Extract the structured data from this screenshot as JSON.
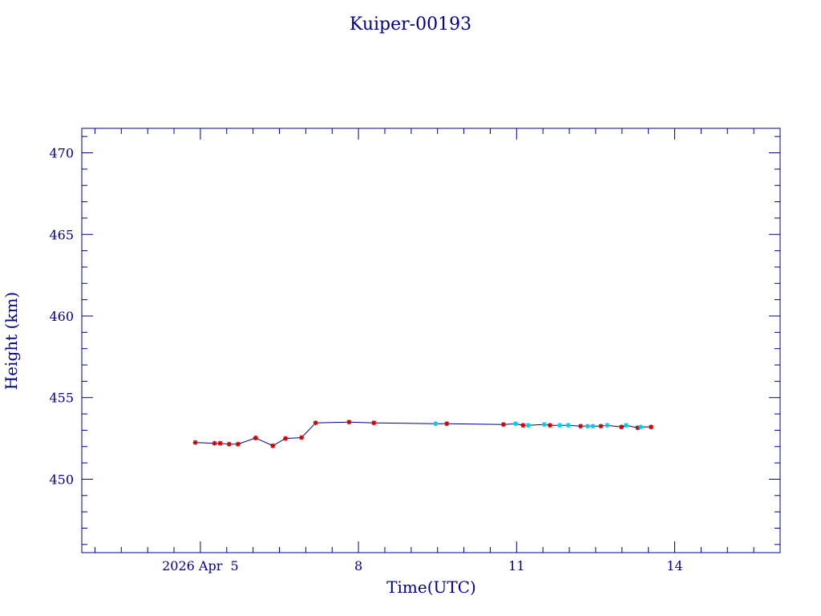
{
  "chart_data": {
    "type": "line",
    "title": "Kuiper-00193",
    "xlabel": "Time(UTC)",
    "ylabel": "Height (km)",
    "xlim": [
      "2026-04-02T18:00",
      "2026-04-16T00:00"
    ],
    "ylim": [
      445.5,
      471.5
    ],
    "grid": false,
    "x_ticks": [
      {
        "x": "2026-04-05T00:00",
        "label": "2026 Apr  5"
      },
      {
        "x": "2026-04-08T00:00",
        "label": "8"
      },
      {
        "x": "2026-04-11T00:00",
        "label": "11"
      },
      {
        "x": "2026-04-14T00:00",
        "label": "14"
      }
    ],
    "y_ticks": [
      {
        "y": 450,
        "label": "450"
      },
      {
        "y": 455,
        "label": "455"
      },
      {
        "y": 460,
        "label": "460"
      },
      {
        "y": 465,
        "label": "465"
      },
      {
        "y": 470,
        "label": "470"
      }
    ],
    "y_minor_step": 1,
    "x_minor_step_hours": 12,
    "colors": {
      "axis": "#00008b",
      "line": "#00008b",
      "marker_red": "#cc0000",
      "marker_cyan": "#00c8e6"
    },
    "series": [
      {
        "line": true,
        "marker": "star",
        "points": [
          {
            "x": "2026-04-04T21:41",
            "y": 452.25,
            "c": "red"
          },
          {
            "x": "2026-04-05T06:26",
            "y": 452.2,
            "c": "red"
          },
          {
            "x": "2026-04-05T09:00",
            "y": 452.2,
            "c": "red"
          },
          {
            "x": "2026-04-05T13:07",
            "y": 452.15,
            "c": "red"
          },
          {
            "x": "2026-04-05T17:07",
            "y": 452.15,
            "c": "red"
          },
          {
            "x": "2026-04-06T22:05",
            "y": 452.55,
            "c": "red"
          },
          {
            "x": "2026-04-06T01:09",
            "y": 452.53,
            "c": "red"
          },
          {
            "x": "2026-04-06T09:00",
            "y": 452.05,
            "c": "red"
          },
          {
            "x": "2026-04-06T14:47",
            "y": 452.5,
            "c": "red"
          },
          {
            "x": "2026-04-07T19:44",
            "y": 453.5,
            "c": "red"
          },
          {
            "x": "2026-04-07T04:29",
            "y": 453.45,
            "c": "red"
          },
          {
            "x": "2026-04-08T07:00",
            "y": 453.45,
            "c": "red"
          },
          {
            "x": "2026-04-09T11:08",
            "y": 453.4,
            "c": "cyan"
          },
          {
            "x": "2026-04-09T16:13",
            "y": 453.4,
            "c": "red"
          },
          {
            "x": "2026-04-10T18:00",
            "y": 453.35,
            "c": "red"
          },
          {
            "x": "2026-04-10T23:31",
            "y": 453.4,
            "c": "cyan"
          },
          {
            "x": "2026-04-11T02:58",
            "y": 453.3,
            "c": "red"
          },
          {
            "x": "2026-04-11T05:18",
            "y": 453.3,
            "c": "cyan"
          },
          {
            "x": "2026-04-11T12:35",
            "y": 453.35,
            "c": "cyan"
          },
          {
            "x": "2026-04-11T15:15",
            "y": 453.3,
            "c": "red"
          },
          {
            "x": "2026-04-11T19:41",
            "y": 453.3,
            "c": "cyan"
          },
          {
            "x": "2026-04-11T23:32",
            "y": 453.3,
            "c": "cyan"
          },
          {
            "x": "2026-04-12T05:09",
            "y": 453.25,
            "c": "red"
          },
          {
            "x": "2026-04-12T08:19",
            "y": 453.25,
            "c": "cyan"
          },
          {
            "x": "2026-04-12T10:45",
            "y": 453.25,
            "c": "cyan"
          },
          {
            "x": "2026-04-12T14:23",
            "y": 453.25,
            "c": "red"
          },
          {
            "x": "2026-04-12T17:16",
            "y": 453.3,
            "c": "cyan"
          },
          {
            "x": "2026-04-12T23:45",
            "y": 453.2,
            "c": "red"
          },
          {
            "x": "2026-04-13T01:50",
            "y": 453.3,
            "c": "cyan"
          },
          {
            "x": "2026-04-13T07:10",
            "y": 453.15,
            "c": "red"
          },
          {
            "x": "2026-04-13T08:32",
            "y": 453.2,
            "c": "cyan"
          },
          {
            "x": "2026-04-13T13:14",
            "y": 453.2,
            "c": "red"
          }
        ]
      }
    ]
  }
}
